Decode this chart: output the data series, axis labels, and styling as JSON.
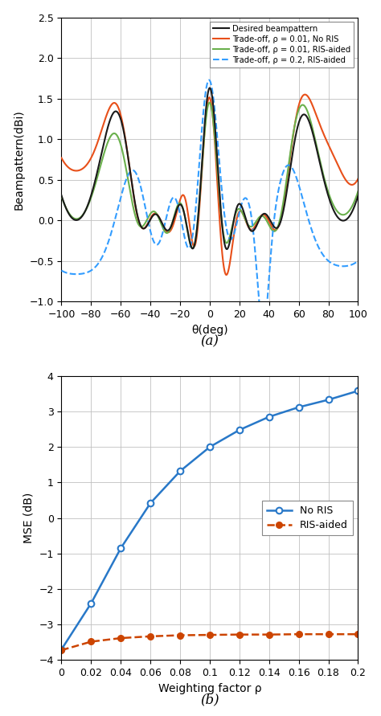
{
  "fig_width": 4.74,
  "fig_height": 8.91,
  "dpi": 100,
  "subplot_a": {
    "xlim": [
      -100,
      100
    ],
    "ylim": [
      -1.0,
      2.5
    ],
    "xlabel": "θ(deg)",
    "ylabel": "Beampattern(dBi)",
    "xticks": [
      -100,
      -80,
      -60,
      -40,
      -20,
      0,
      20,
      40,
      60,
      80,
      100
    ],
    "yticks": [
      -1.0,
      -0.5,
      0.0,
      0.5,
      1.0,
      1.5,
      2.0,
      2.5
    ],
    "legend": [
      {
        "label": "Desired beampattern",
        "color": "#1a1a1a",
        "ls": "-",
        "lw": 1.5
      },
      {
        "label": "Trade-off, ρ = 0.01, No RIS",
        "color": "#E8501A",
        "ls": "-",
        "lw": 1.5
      },
      {
        "label": "Trade-off, ρ = 0.01, RIS-aided",
        "color": "#6ab04c",
        "ls": "-",
        "lw": 1.5
      },
      {
        "label": "Trade-off, ρ = 0.2, RIS-aided",
        "color": "#339DFF",
        "ls": "--",
        "lw": 1.5
      }
    ]
  },
  "subplot_b": {
    "xlim": [
      0,
      0.2
    ],
    "ylim": [
      -4,
      4
    ],
    "xlabel": "Weighting factor ρ",
    "ylabel": "MSE (dB)",
    "xticks": [
      0,
      0.02,
      0.04,
      0.06,
      0.08,
      0.1,
      0.12,
      0.14,
      0.16,
      0.18,
      0.2
    ],
    "yticks": [
      -4,
      -3,
      -2,
      -1,
      0,
      1,
      2,
      3,
      4
    ],
    "no_ris_rho": [
      0,
      0.02,
      0.04,
      0.06,
      0.08,
      0.1,
      0.12,
      0.14,
      0.16,
      0.18,
      0.2
    ],
    "no_ris_mse": [
      -3.7,
      -2.4,
      -0.85,
      0.42,
      1.32,
      2.0,
      2.48,
      2.85,
      3.12,
      3.33,
      3.58
    ],
    "ris_aided_rho": [
      0,
      0.02,
      0.04,
      0.06,
      0.08,
      0.1,
      0.12,
      0.14,
      0.16,
      0.18,
      0.2
    ],
    "ris_aided_mse": [
      -3.72,
      -3.48,
      -3.38,
      -3.33,
      -3.3,
      -3.29,
      -3.28,
      -3.28,
      -3.27,
      -3.27,
      -3.27
    ],
    "no_ris_color": "#2878C8",
    "ris_aided_color": "#CC4400",
    "legend": [
      {
        "label": "No RIS",
        "color": "#2878C8",
        "ls": "-",
        "marker": "o"
      },
      {
        "label": "RIS-aided",
        "color": "#CC4400",
        "ls": "--",
        "marker": "o"
      }
    ]
  }
}
